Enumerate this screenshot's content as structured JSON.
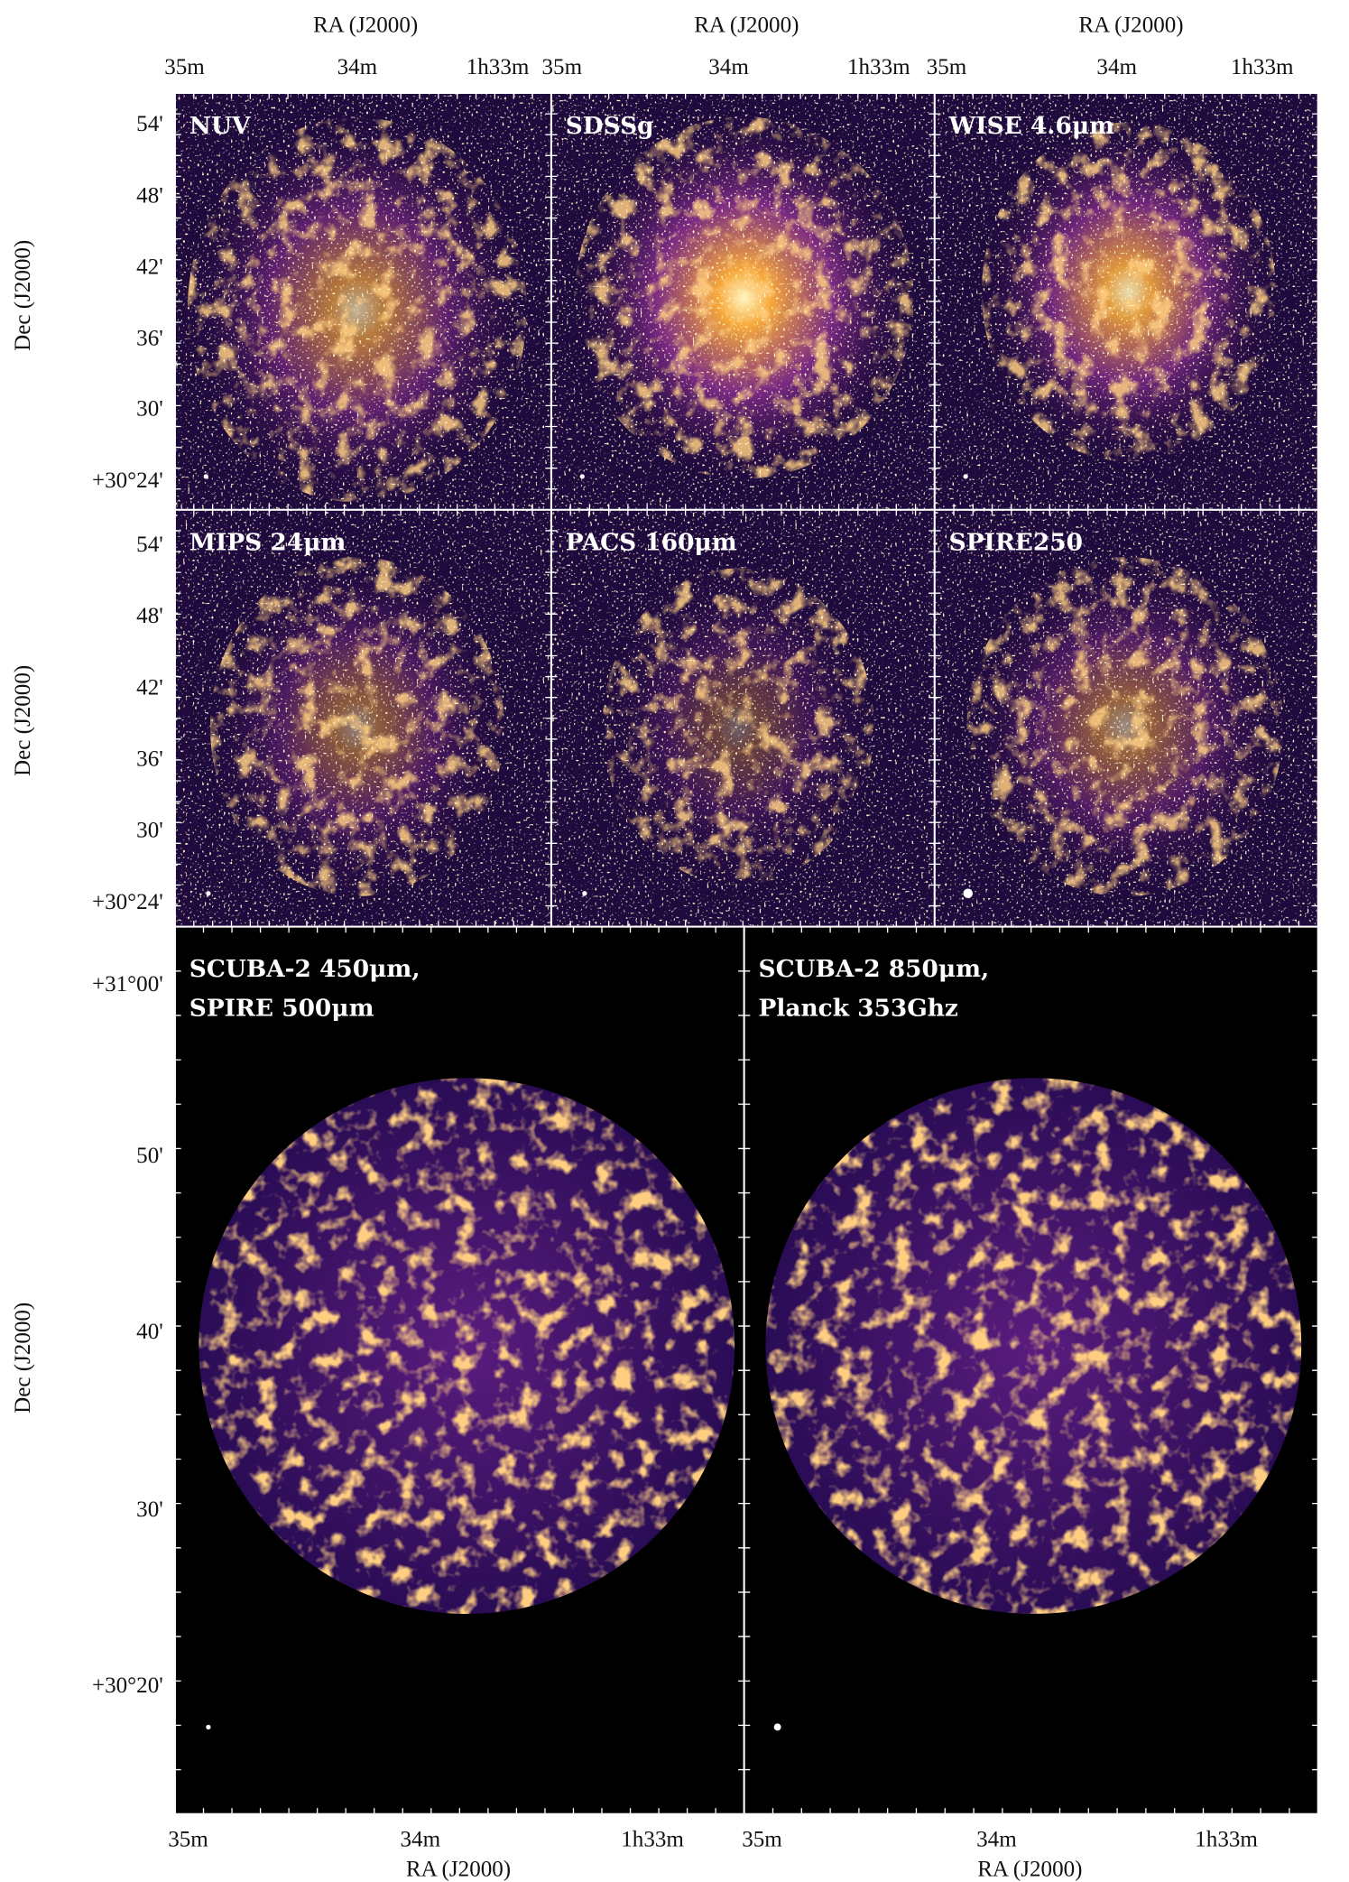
{
  "top_ra_axis_labels": [
    "RA (J2000)",
    "RA (J2000)",
    "RA (J2000)"
  ],
  "top_ra_ticks": [
    [
      "35m",
      "34m",
      "1h33m"
    ],
    [
      "35m",
      "34m",
      "1h33m"
    ],
    [
      "35m",
      "34m",
      "1h33m"
    ]
  ],
  "row_dec_axis_labels": [
    "Dec (J2000)",
    "Dec (J2000)",
    "Dec (J2000)"
  ],
  "row_dec_ticks": [
    [
      "54'",
      "48'",
      "42'",
      "36'",
      "30'",
      "+30°24'"
    ],
    [
      "54'",
      "48'",
      "42'",
      "36'",
      "30'",
      "+30°24'"
    ]
  ],
  "bottom_dec_ticks": [
    "+31°00'",
    "50'",
    "40'",
    "30'",
    "+30°20'"
  ],
  "bottom_ra_ticks": [
    [
      "35m",
      "34m",
      "1h33m"
    ],
    [
      "35m",
      "34m",
      "1h33m"
    ]
  ],
  "bottom_ra_axis_labels": [
    "RA (J2000)",
    "RA (J2000)"
  ],
  "panels": [
    {
      "label": [
        "NUV"
      ]
    },
    {
      "label": [
        "SDSSg"
      ]
    },
    {
      "label": [
        "WISE 4.6μm"
      ]
    },
    {
      "label": [
        "MIPS 24μm"
      ]
    },
    {
      "label": [
        "PACS 160μm"
      ]
    },
    {
      "label": [
        "SPIRE250"
      ]
    },
    {
      "label": [
        "SCUBA-2 450μm,",
        "SPIRE 500μm"
      ]
    },
    {
      "label": [
        "SCUBA-2 850μm,",
        "Planck 353Ghz"
      ]
    }
  ]
}
